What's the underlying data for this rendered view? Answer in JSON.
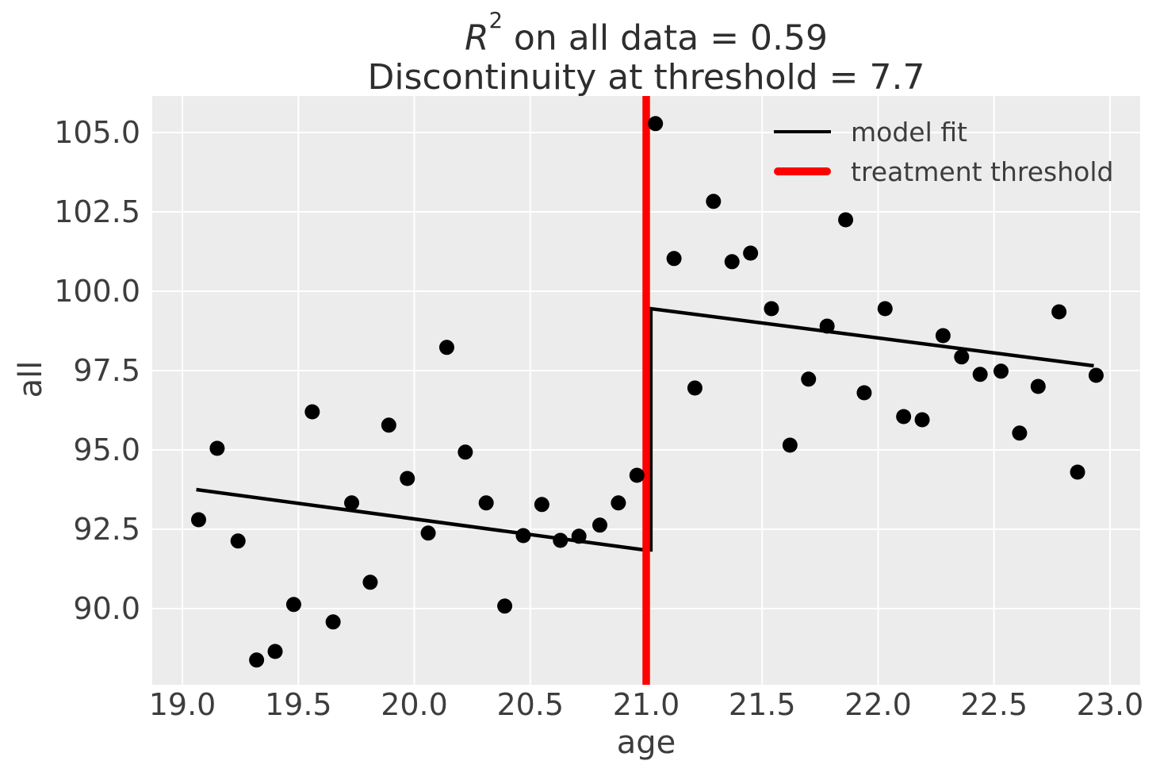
{
  "title": {
    "r_symbol": "R",
    "r_superscript": "2",
    "line1_rest": " on all data = 0.59",
    "line2": "Discontinuity at threshold = 7.7"
  },
  "axes": {
    "xlabel": "age",
    "ylabel": "all",
    "x_range": [
      18.87,
      23.13
    ],
    "y_range": [
      87.6,
      106.15
    ],
    "x_ticks": [
      {
        "value": 19.0,
        "label": "19.0"
      },
      {
        "value": 19.5,
        "label": "19.5"
      },
      {
        "value": 20.0,
        "label": "20.0"
      },
      {
        "value": 20.5,
        "label": "20.5"
      },
      {
        "value": 21.0,
        "label": "21.0"
      },
      {
        "value": 21.5,
        "label": "21.5"
      },
      {
        "value": 22.0,
        "label": "22.0"
      },
      {
        "value": 22.5,
        "label": "22.5"
      },
      {
        "value": 23.0,
        "label": "23.0"
      }
    ],
    "y_ticks": [
      {
        "value": 105.0,
        "label": "105.0"
      },
      {
        "value": 102.5,
        "label": "102.5"
      },
      {
        "value": 100.0,
        "label": "100.0"
      },
      {
        "value": 97.5,
        "label": "97.5"
      },
      {
        "value": 95.0,
        "label": "95.0"
      },
      {
        "value": 92.5,
        "label": "92.5"
      },
      {
        "value": 90.0,
        "label": "90.0"
      }
    ]
  },
  "legend": {
    "items": [
      {
        "label": "model fit",
        "color": "#000000"
      },
      {
        "label": "treatment threshold",
        "color": "#ff0000"
      }
    ]
  },
  "colors": {
    "plot_bg": "#ececec",
    "grid": "#ffffff",
    "point": "#000000",
    "fit": "#000000",
    "threshold": "#ff0000",
    "text": "#3d3d3d",
    "title_text": "#2e2e2e"
  },
  "chart_data": {
    "type": "scatter",
    "title": "R² on all data = 0.59\nDiscontinuity at threshold = 7.7",
    "xlabel": "age",
    "ylabel": "all",
    "xlim": [
      18.87,
      23.13
    ],
    "ylim": [
      87.6,
      106.15
    ],
    "grid": true,
    "legend_position": "upper right",
    "threshold_x": 21.0,
    "points": [
      [
        19.07,
        92.8
      ],
      [
        19.15,
        95.05
      ],
      [
        19.24,
        92.13
      ],
      [
        19.32,
        88.38
      ],
      [
        19.4,
        88.65
      ],
      [
        19.48,
        90.13
      ],
      [
        19.56,
        96.2
      ],
      [
        19.65,
        89.58
      ],
      [
        19.73,
        93.33
      ],
      [
        19.81,
        90.83
      ],
      [
        19.89,
        95.78
      ],
      [
        19.97,
        94.1
      ],
      [
        20.06,
        92.38
      ],
      [
        20.14,
        98.23
      ],
      [
        20.22,
        94.93
      ],
      [
        20.31,
        93.33
      ],
      [
        20.39,
        90.08
      ],
      [
        20.47,
        92.3
      ],
      [
        20.55,
        93.28
      ],
      [
        20.63,
        92.15
      ],
      [
        20.71,
        92.28
      ],
      [
        20.8,
        92.63
      ],
      [
        20.88,
        93.33
      ],
      [
        20.96,
        94.2
      ],
      [
        21.04,
        105.28
      ],
      [
        21.12,
        101.03
      ],
      [
        21.21,
        96.95
      ],
      [
        21.29,
        102.83
      ],
      [
        21.37,
        100.93
      ],
      [
        21.45,
        101.2
      ],
      [
        21.54,
        99.45
      ],
      [
        21.62,
        95.15
      ],
      [
        21.7,
        97.23
      ],
      [
        21.78,
        98.9
      ],
      [
        21.86,
        102.25
      ],
      [
        21.94,
        96.8
      ],
      [
        22.03,
        99.45
      ],
      [
        22.11,
        96.05
      ],
      [
        22.19,
        95.95
      ],
      [
        22.28,
        98.6
      ],
      [
        22.36,
        97.93
      ],
      [
        22.44,
        97.38
      ],
      [
        22.53,
        97.48
      ],
      [
        22.61,
        95.53
      ],
      [
        22.69,
        97.0
      ],
      [
        22.78,
        99.35
      ],
      [
        22.86,
        94.3
      ],
      [
        22.94,
        97.35
      ]
    ],
    "model_fit": {
      "left": {
        "x": [
          19.06,
          20.99
        ],
        "y": [
          93.75,
          91.85
        ]
      },
      "jump_x": 21.02,
      "right": {
        "x": [
          21.02,
          22.93
        ],
        "y": [
          99.45,
          97.65
        ]
      },
      "discontinuity": 7.7,
      "r_squared": 0.59
    }
  }
}
